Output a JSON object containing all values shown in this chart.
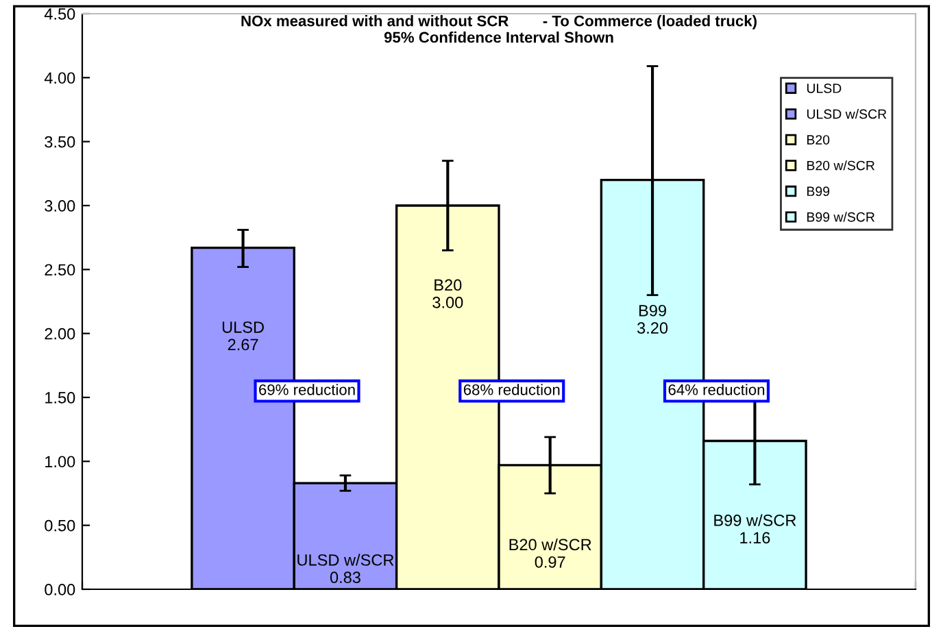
{
  "chart_data": {
    "type": "bar",
    "title": "NOx measured with and without SCR        - To Commerce (loaded truck)\n95% Confidence Interval Shown",
    "categories": [
      null
    ],
    "series": [
      {
        "name": "ULSD",
        "color": "#9999ff",
        "values": [
          2.67
        ],
        "value_labels": [
          "2.67"
        ],
        "errors": [
          [
            2.52,
            2.81
          ]
        ]
      },
      {
        "name": "ULSD w/SCR",
        "color": "#9999ff",
        "values": [
          0.83
        ],
        "value_labels": [
          "0.83"
        ],
        "errors": [
          [
            0.77,
            0.89
          ]
        ]
      },
      {
        "name": "B20",
        "color": "#ffffcc",
        "values": [
          3.0
        ],
        "value_labels": [
          "3.00"
        ],
        "errors": [
          [
            2.65,
            3.35
          ]
        ]
      },
      {
        "name": "B20 w/SCR",
        "color": "#ffffcc",
        "values": [
          0.97
        ],
        "value_labels": [
          "0.97"
        ],
        "errors": [
          [
            0.75,
            1.19
          ]
        ]
      },
      {
        "name": "B99",
        "color": "#ccffff",
        "values": [
          3.2
        ],
        "value_labels": [
          "3.20"
        ],
        "errors": [
          [
            2.3,
            4.09
          ]
        ]
      },
      {
        "name": "B99 w/SCR",
        "color": "#ccffff",
        "values": [
          1.16
        ],
        "value_labels": [
          "1.16"
        ],
        "errors": [
          [
            0.82,
            1.49
          ]
        ]
      }
    ],
    "annotations": [
      "69% reduction",
      "68% reduction",
      "64% reduction"
    ],
    "ylim": [
      0,
      4.5
    ],
    "yticks": [
      {
        "value": 0,
        "label": "0.00"
      },
      {
        "value": 0.5,
        "label": "0.50"
      },
      {
        "value": 1,
        "label": "1.00"
      },
      {
        "value": 1.5,
        "label": "1.50"
      },
      {
        "value": 2,
        "label": "2.00"
      },
      {
        "value": 2.5,
        "label": "2.50"
      },
      {
        "value": 3,
        "label": "3.00"
      },
      {
        "value": 3.5,
        "label": "3.50"
      },
      {
        "value": 4,
        "label": "4.00"
      },
      {
        "value": 4.5,
        "label": "4.50"
      }
    ],
    "legend": "top right",
    "grid": false
  }
}
